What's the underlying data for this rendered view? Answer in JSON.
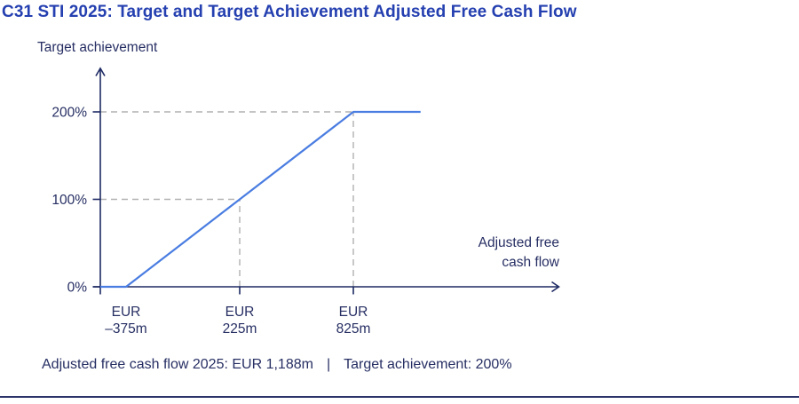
{
  "colors": {
    "title": "#2540b0",
    "text": "#272f63",
    "axis": "#1e2a63",
    "line": "#4a7de1",
    "dash": "#b1b1b1",
    "rule": "#2b3368"
  },
  "caption": {
    "part1": "Adjusted free cash flow 2025: EUR 1,188m",
    "separator": "|",
    "part2": "Target achievement: 200%"
  },
  "chart_data": {
    "type": "line",
    "title": "C31 STI 2025: Target and Target Achievement Adjusted Free Cash Flow",
    "y_axis_label": "Target achievement",
    "x_axis_label_lines": [
      "Adjusted free",
      "cash flow"
    ],
    "x_unit": "EUR m",
    "y_range": [
      0,
      200
    ],
    "y_ticks": [
      {
        "value": 0,
        "label": "0%"
      },
      {
        "value": 100,
        "label": "100%"
      },
      {
        "value": 200,
        "label": "200%"
      }
    ],
    "x_ticks": [
      {
        "value": -375,
        "label_lines": [
          "EUR",
          "–375m"
        ],
        "tick_mark": false
      },
      {
        "value": 225,
        "label_lines": [
          "EUR",
          "225m"
        ],
        "tick_mark": true
      },
      {
        "value": 825,
        "label_lines": [
          "EUR",
          "825m"
        ],
        "tick_mark": true
      }
    ],
    "series": [
      {
        "name": "target-achievement-vs-adjusted-free-cash-flow",
        "color": "#4a7de1",
        "points": [
          [
            -511,
            0
          ],
          [
            -375,
            0
          ],
          [
            225,
            100
          ],
          [
            825,
            200
          ],
          [
            1180,
            200
          ]
        ]
      }
    ],
    "key_points": [
      {
        "x": -375,
        "y": 0,
        "meaning": "0% achievement at EUR –375m"
      },
      {
        "x": 225,
        "y": 100,
        "meaning": "100% achievement at EUR 225m"
      },
      {
        "x": 825,
        "y": 200,
        "meaning": "200% achievement cap at EUR 825m"
      }
    ],
    "guide_points": [
      {
        "x": 225,
        "y": 100
      },
      {
        "x": 825,
        "y": 200
      }
    ],
    "grid": false,
    "legend": false
  }
}
